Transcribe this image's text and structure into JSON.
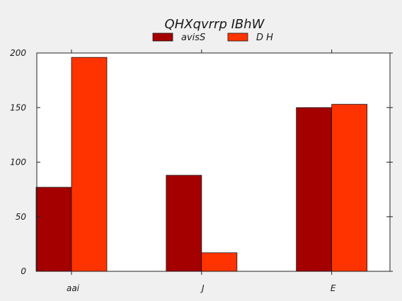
{
  "chart_data": {
    "type": "bar",
    "title": "QHXqvrrp IBhW",
    "categories": [
      "aai",
      "J",
      "E"
    ],
    "series": [
      {
        "name": "avisS",
        "values": [
          77,
          88,
          150
        ],
        "color": "#a50000"
      },
      {
        "name": "D H",
        "values": [
          196,
          17,
          153
        ],
        "color": "#ff3300"
      }
    ],
    "ylim": [
      0,
      200
    ],
    "yticks": [
      0,
      50,
      100,
      150,
      200
    ],
    "xlabel": "",
    "ylabel": "",
    "grid": false,
    "legend_position": "top-center"
  }
}
